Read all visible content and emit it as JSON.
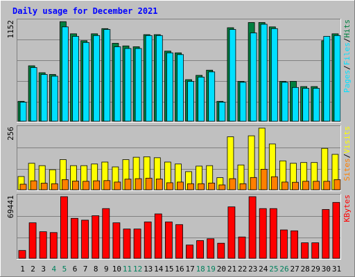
{
  "colors": {
    "background": "#c0c0c0",
    "panel": "#c0c0c0",
    "grid": "#808080",
    "title": "#0000ff",
    "weekend_label": "#00805c",
    "hits": "#00e0ff",
    "files": "#008040",
    "pages": "#00e0ff",
    "visits": "#ffff00",
    "sites": "#ff8000",
    "kbytes": "#ff0000"
  },
  "chart_data": {
    "type": "bar",
    "title": "Daily usage for December 2021",
    "categories": [
      "1",
      "2",
      "3",
      "4",
      "5",
      "6",
      "7",
      "8",
      "9",
      "10",
      "11",
      "12",
      "13",
      "14",
      "15",
      "16",
      "17",
      "18",
      "19",
      "20",
      "21",
      "22",
      "23",
      "24",
      "25",
      "26",
      "27",
      "28",
      "29",
      "30",
      "31"
    ],
    "weekend_days": [
      "4",
      "5",
      "11",
      "12",
      "18",
      "19",
      "25",
      "26"
    ],
    "panels": [
      {
        "id": "hits",
        "ymax": 1152,
        "ymax_label": "1152",
        "legend": [
          {
            "text": "Pages",
            "color": "#00e0ff"
          },
          {
            "text": "/",
            "color": "#000000"
          },
          {
            "text": "Files",
            "color": "#00e0ff"
          },
          {
            "text": "/",
            "color": "#000000"
          },
          {
            "text": "Hits",
            "color": "#008040"
          }
        ],
        "series": [
          {
            "name": "Hits",
            "color": "#008040",
            "values": [
              230,
              640,
              560,
              540,
              1150,
              1010,
              930,
              1010,
              1070,
              900,
              870,
              860,
              1000,
              1000,
              810,
              790,
              480,
              530,
              590,
              230,
              1080,
              460,
              1140,
              1140,
              1090,
              460,
              460,
              400,
              400,
              930,
              1010
            ]
          },
          {
            "name": "Files",
            "color": "#00e0ff",
            "values": [
              220,
              620,
              540,
              520,
              1090,
              980,
              910,
              990,
              1060,
              860,
              840,
              840,
              990,
              990,
              790,
              770,
              460,
              510,
              570,
              220,
              1060,
              450,
              1020,
              1120,
              1070,
              450,
              390,
              380,
              380,
              980,
              990
            ]
          }
        ]
      },
      {
        "id": "visits",
        "ymax": 256,
        "ymax_label": "256",
        "legend": [
          {
            "text": "Sites",
            "color": "#ff8000"
          },
          {
            "text": "/",
            "color": "#000000"
          },
          {
            "text": "Visits",
            "color": "#ffff00"
          }
        ],
        "series": [
          {
            "name": "Visits",
            "color": "#ffff00",
            "values": [
              55,
              110,
              100,
              83,
              125,
              100,
              100,
              107,
              115,
              95,
              125,
              135,
              137,
              133,
              115,
              107,
              75,
              98,
              100,
              50,
              220,
              103,
              224,
              263,
              190,
              120,
              110,
              113,
              113,
              172,
              147
            ]
          },
          {
            "name": "Sites",
            "color": "#ff8000",
            "values": [
              23,
              37,
              27,
              25,
              42,
              36,
              35,
              37,
              38,
              32,
              44,
              46,
              48,
              45,
              29,
              32,
              25,
              25,
              28,
              20,
              46,
              25,
              51,
              85,
              54,
              32,
              31,
              35,
              35,
              35,
              42
            ]
          }
        ]
      },
      {
        "id": "kbytes",
        "ymax": 69441,
        "ymax_label": "69441",
        "legend": [
          {
            "text": "KBytes",
            "color": "#ff0000"
          }
        ],
        "series": [
          {
            "name": "KBytes",
            "color": "#ff0000",
            "values": [
              8800,
              40000,
              30000,
              29000,
              70100,
              45000,
              43000,
              48000,
              56000,
              40000,
              33000,
              33000,
              41000,
              50000,
              41000,
              38000,
              15000,
              20000,
              22000,
              17000,
              58000,
              24000,
              72000,
              56000,
              56000,
              32000,
              31000,
              17500,
              17500,
              55000,
              63000
            ]
          }
        ]
      }
    ]
  }
}
